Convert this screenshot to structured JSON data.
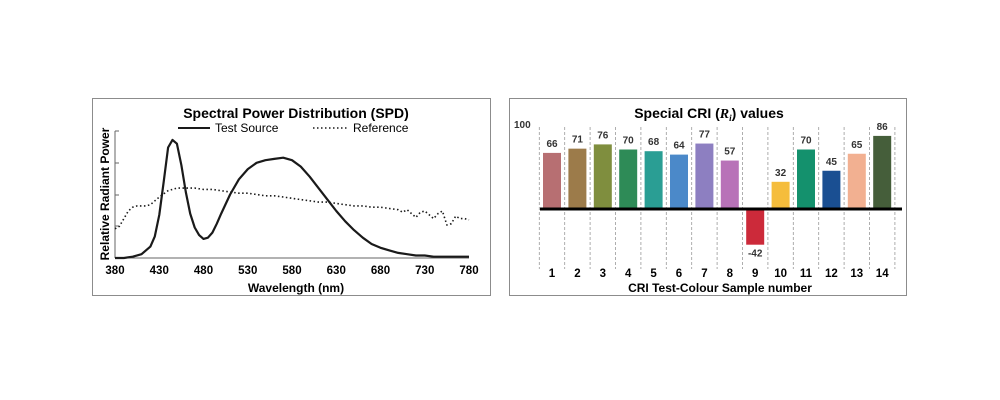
{
  "chart_data": [
    {
      "type": "line",
      "title": "Spectral Power Distribution (SPD)",
      "xlabel": "Wavelength (nm)",
      "ylabel": "Relative Radiant Power",
      "xlim": [
        380,
        780
      ],
      "xticks": [
        "380",
        "430",
        "480",
        "530",
        "580",
        "630",
        "680",
        "730",
        "780"
      ],
      "ylim": [
        0,
        1
      ],
      "legend": "top",
      "series": [
        {
          "name": "Test Source",
          "style": "solid",
          "color": "#1a1a1a",
          "x": [
            380,
            390,
            400,
            410,
            420,
            425,
            430,
            435,
            440,
            445,
            450,
            455,
            460,
            465,
            470,
            475,
            480,
            485,
            490,
            495,
            500,
            510,
            520,
            530,
            540,
            550,
            560,
            570,
            580,
            590,
            600,
            610,
            620,
            630,
            640,
            650,
            660,
            670,
            680,
            690,
            700,
            710,
            720,
            730,
            740,
            750,
            760,
            770,
            780
          ],
          "y": [
            0.0,
            0.0,
            0.01,
            0.03,
            0.09,
            0.17,
            0.34,
            0.6,
            0.87,
            0.93,
            0.9,
            0.73,
            0.52,
            0.35,
            0.24,
            0.18,
            0.15,
            0.16,
            0.2,
            0.27,
            0.35,
            0.5,
            0.62,
            0.7,
            0.75,
            0.77,
            0.78,
            0.79,
            0.77,
            0.72,
            0.64,
            0.55,
            0.46,
            0.37,
            0.29,
            0.22,
            0.16,
            0.11,
            0.08,
            0.06,
            0.04,
            0.03,
            0.02,
            0.02,
            0.01,
            0.01,
            0.01,
            0.01,
            0.01
          ]
        },
        {
          "name": "Reference",
          "style": "dotted",
          "color": "#1a1a1a",
          "x": [
            380,
            385,
            390,
            395,
            400,
            405,
            410,
            415,
            420,
            430,
            440,
            450,
            460,
            470,
            480,
            490,
            500,
            510,
            520,
            530,
            540,
            550,
            560,
            570,
            580,
            590,
            600,
            610,
            620,
            630,
            640,
            650,
            660,
            670,
            680,
            690,
            700,
            705,
            710,
            715,
            720,
            725,
            730,
            735,
            740,
            745,
            750,
            755,
            760,
            765,
            770,
            775,
            780
          ],
          "y": [
            0.23,
            0.25,
            0.31,
            0.37,
            0.4,
            0.41,
            0.41,
            0.41,
            0.42,
            0.48,
            0.53,
            0.55,
            0.55,
            0.55,
            0.54,
            0.54,
            0.53,
            0.52,
            0.51,
            0.51,
            0.5,
            0.49,
            0.49,
            0.48,
            0.47,
            0.46,
            0.45,
            0.44,
            0.44,
            0.43,
            0.42,
            0.41,
            0.41,
            0.4,
            0.4,
            0.39,
            0.38,
            0.36,
            0.38,
            0.35,
            0.32,
            0.36,
            0.37,
            0.34,
            0.31,
            0.35,
            0.37,
            0.26,
            0.27,
            0.33,
            0.31,
            0.31,
            0.3
          ]
        }
      ]
    },
    {
      "type": "bar",
      "title": "Special CRI (",
      "title_symbol": "R",
      "title_subscript": "i",
      "title_end": ") values",
      "xlabel": "CRI Test-Colour Sample number",
      "ylabel": "",
      "ylim": [
        -42,
        100
      ],
      "y_label_value": "100",
      "grid": "dashed vertical separators",
      "categories": [
        "1",
        "2",
        "3",
        "4",
        "5",
        "6",
        "7",
        "8",
        "9",
        "10",
        "11",
        "12",
        "13",
        "14"
      ],
      "values": [
        66,
        71,
        76,
        70,
        68,
        64,
        77,
        57,
        -42,
        32,
        70,
        45,
        65,
        86
      ],
      "colors": [
        "#b76f72",
        "#9c7b4a",
        "#7f8e3e",
        "#2e8b57",
        "#2a9e94",
        "#4b89c9",
        "#8d7fc1",
        "#b872b8",
        "#cc2a3a",
        "#f5bd3c",
        "#14916d",
        "#1a4f92",
        "#f2b091",
        "#455e3a"
      ]
    }
  ]
}
